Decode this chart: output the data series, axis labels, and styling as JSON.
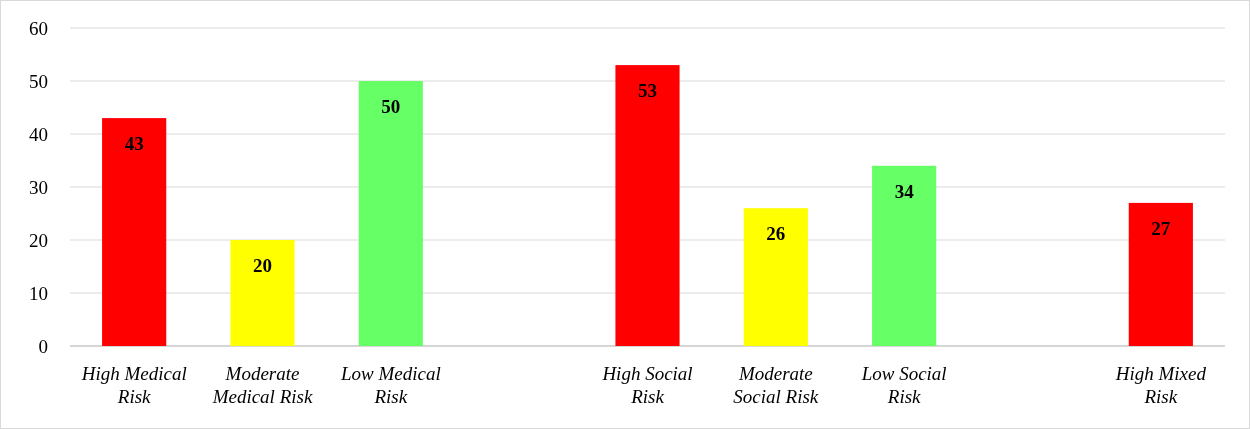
{
  "chart_data": {
    "type": "bar",
    "categories": [
      "High Medical Risk",
      "Moderate Medical Risk",
      "Low Medical Risk",
      null,
      "High Social Risk",
      "Moderate Social Risk",
      "Low Social Risk",
      null,
      "High Mixed Risk"
    ],
    "values": [
      43,
      20,
      50,
      null,
      53,
      26,
      34,
      null,
      27
    ],
    "colors": [
      "#ff0000",
      "#ffff00",
      "#66ff66",
      null,
      "#ff0000",
      "#ffff00",
      "#66ff66",
      null,
      "#ff0000"
    ],
    "ylim": [
      0,
      60
    ],
    "yticks": [
      0,
      10,
      20,
      30,
      40,
      50,
      60
    ],
    "grid": "y",
    "data_labels": true
  }
}
